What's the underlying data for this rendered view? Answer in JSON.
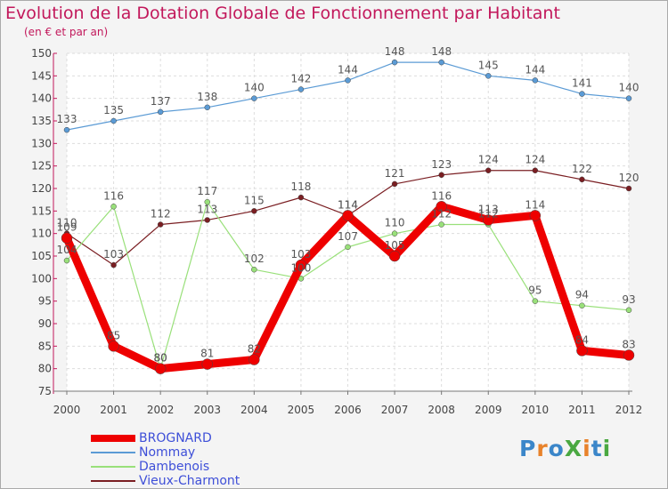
{
  "title": "Evolution de la Dotation Globale de Fonctionnement par Habitant",
  "subtitle": "(en € et par an)",
  "logo": {
    "text": "ProXiti",
    "colors": [
      "#3b86c9",
      "#e8822a",
      "#3b86c9",
      "#4aa841",
      "#e8822a",
      "#3b86c9",
      "#4aa841"
    ]
  },
  "chart_data": {
    "type": "line",
    "x": [
      "2000",
      "2001",
      "2002",
      "2003",
      "2004",
      "2005",
      "2006",
      "2007",
      "2008",
      "2009",
      "2010",
      "2011",
      "2012"
    ],
    "ylim": [
      75,
      150
    ],
    "yticks": [
      75,
      80,
      85,
      90,
      95,
      100,
      105,
      110,
      115,
      120,
      125,
      130,
      135,
      140,
      145,
      150
    ],
    "grid": true,
    "legend_position": "bottom-left",
    "series": [
      {
        "name": "BROGNARD",
        "color": "#ee0000",
        "values": [
          109,
          85,
          80,
          81,
          82,
          103,
          114,
          105,
          116,
          113,
          114,
          84,
          83
        ]
      },
      {
        "name": "Nommay",
        "color": "#5b9bd5",
        "values": [
          133,
          135,
          137,
          138,
          140,
          142,
          144,
          148,
          148,
          145,
          144,
          141,
          140
        ]
      },
      {
        "name": "Dambenois",
        "color": "#99e07a",
        "values": [
          104,
          116,
          80,
          117,
          102,
          100,
          107,
          110,
          112,
          112,
          95,
          94,
          93
        ]
      },
      {
        "name": "Vieux-Charmont",
        "color": "#7a1e22",
        "values": [
          110,
          103,
          112,
          113,
          115,
          118,
          114,
          121,
          123,
          124,
          124,
          122,
          120
        ]
      }
    ]
  }
}
